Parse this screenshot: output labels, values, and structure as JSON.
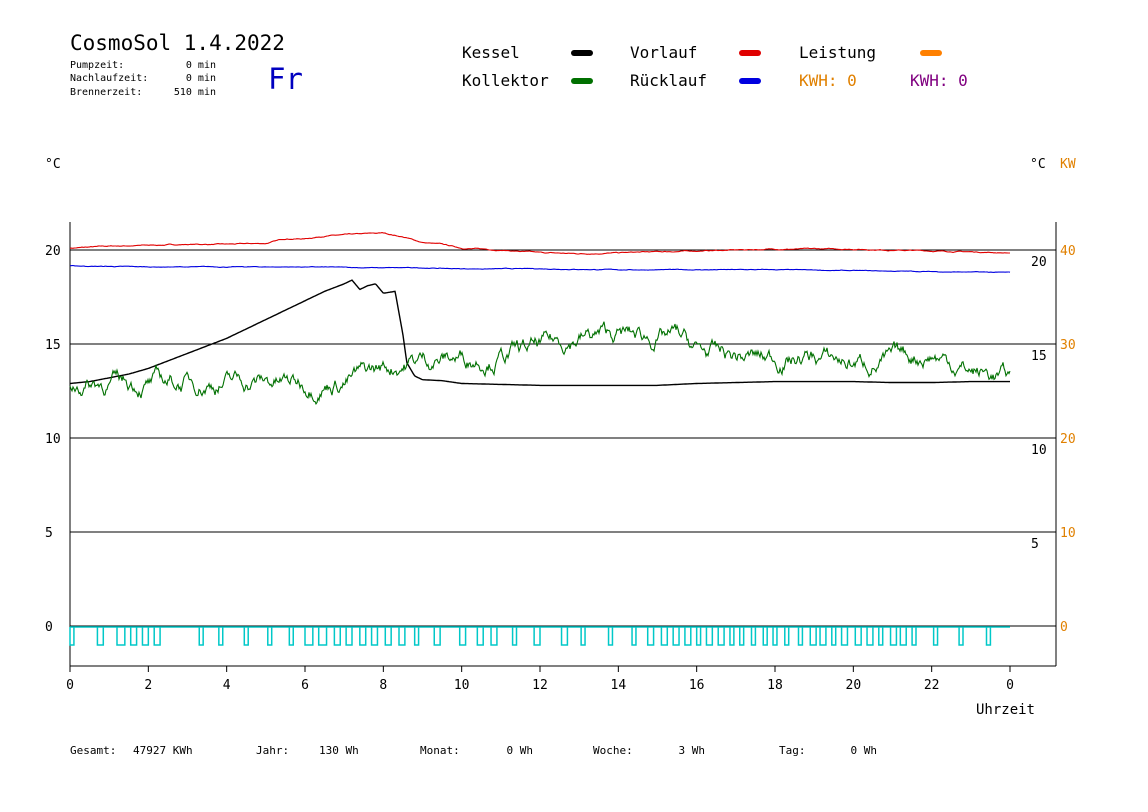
{
  "header": {
    "title": "CosmoSol 1.4.2022",
    "day": "Fr",
    "pumpzeit_label": "Pumpzeit:",
    "pumpzeit_value": "0 min",
    "nachlaufzeit_label": "Nachlaufzeit:",
    "nachlaufzeit_value": "0 min",
    "brennerzeit_label": "Brennerzeit:",
    "brennerzeit_value": "510 min"
  },
  "legend": {
    "kessel": "Kessel",
    "kollektor": "Kollektor",
    "vorlauf": "Vorlauf",
    "ruecklauf": "Rücklauf",
    "leistung": "Leistung",
    "kwh_orange": "KWH: 0",
    "kwh_purple": "KWH: 0"
  },
  "units": {
    "left": "°C",
    "right_c": "°C",
    "right_kw": "KW"
  },
  "footer": {
    "gesamt_label": "Gesamt:",
    "gesamt_value": "47927 KWh",
    "jahr_label": "Jahr:",
    "jahr_value": "130 Wh",
    "monat_label": "Monat:",
    "monat_value": "0 Wh",
    "woche_label": "Woche:",
    "woche_value": "3 Wh",
    "tag_label": "Tag:",
    "tag_value": "0 Wh"
  },
  "colors": {
    "kessel": "#000000",
    "kollektor": "#007000",
    "vorlauf": "#e00000",
    "ruecklauf": "#0000e0",
    "leistung": "#ff8000",
    "kwh_orange": "#e08000",
    "kwh_purple": "#800080",
    "pump": "#00c8c8",
    "day": "#0000c0",
    "kw_axis": "#e08000"
  },
  "chart_data": {
    "type": "line",
    "xlabel": "Uhrzeit",
    "x_ticks": [
      "0",
      "2",
      "4",
      "6",
      "8",
      "10",
      "12",
      "14",
      "16",
      "18",
      "20",
      "22",
      "0"
    ],
    "xlim": [
      0,
      24
    ],
    "ylim_left": [
      -1.5,
      22
    ],
    "y_ticks_left": [
      "0",
      "5",
      "10",
      "15",
      "20"
    ],
    "y_ticks_right_c": [
      "5",
      "10",
      "15",
      "20"
    ],
    "y_ticks_right_kw": [
      "0",
      "10",
      "20",
      "30",
      "40"
    ],
    "gridlines_c": [
      0,
      5,
      10,
      15,
      20
    ],
    "series": [
      {
        "name": "Vorlauf",
        "color_key": "vorlauf",
        "x": [
          0,
          1,
          2,
          3,
          4,
          5,
          5.5,
          6,
          6.5,
          7,
          8,
          8.5,
          9,
          9.5,
          10,
          11,
          12,
          13,
          14,
          15,
          16,
          17,
          18,
          19,
          20,
          21,
          22,
          23,
          24
        ],
        "y": [
          20.1,
          20.2,
          20.25,
          20.3,
          20.3,
          20.35,
          20.6,
          20.6,
          20.75,
          20.8,
          20.9,
          20.7,
          20.4,
          20.3,
          20.1,
          20.0,
          19.85,
          19.8,
          19.85,
          19.9,
          19.95,
          20.0,
          20.05,
          20.05,
          20.05,
          20.0,
          19.95,
          19.9,
          19.85
        ]
      },
      {
        "name": "Rücklauf",
        "color_key": "ruecklauf",
        "x": [
          0,
          2,
          4,
          6,
          8,
          9,
          10,
          12,
          14,
          16,
          18,
          20,
          22,
          24
        ],
        "y": [
          19.15,
          19.1,
          19.1,
          19.1,
          19.05,
          19.05,
          19.0,
          19.0,
          18.95,
          18.95,
          18.95,
          18.9,
          18.85,
          18.8
        ]
      },
      {
        "name": "Kessel",
        "color_key": "kessel",
        "x": [
          0,
          0.5,
          1,
          1.5,
          2,
          2.5,
          3,
          3.5,
          4,
          4.5,
          5,
          5.5,
          6,
          6.5,
          7,
          7.2,
          7.4,
          7.6,
          7.8,
          8.0,
          8.3,
          8.5,
          8.6,
          8.8,
          9.0,
          9.5,
          10,
          11,
          12,
          13,
          14,
          15,
          16,
          17,
          18,
          19,
          20,
          21,
          22,
          23,
          24
        ],
        "y": [
          12.9,
          13.0,
          13.2,
          13.4,
          13.7,
          14.1,
          14.5,
          14.9,
          15.3,
          15.8,
          16.3,
          16.8,
          17.3,
          17.8,
          18.2,
          18.4,
          17.9,
          18.1,
          18.2,
          17.7,
          17.8,
          15.5,
          14.0,
          13.3,
          13.1,
          13.05,
          12.9,
          12.85,
          12.8,
          12.8,
          12.8,
          12.8,
          12.9,
          12.95,
          13.0,
          13.0,
          13.0,
          12.95,
          12.95,
          13.0,
          13.0
        ]
      },
      {
        "name": "Kollektor",
        "color_key": "kollektor",
        "x": [
          0,
          1,
          2,
          3,
          4,
          5,
          6,
          7,
          8,
          8.5,
          9,
          10,
          11,
          12,
          13,
          14,
          15,
          15.5,
          16,
          17,
          18,
          19,
          20,
          21,
          22,
          23,
          24
        ],
        "y": [
          12.9,
          13.0,
          12.9,
          12.95,
          13.0,
          13.0,
          12.9,
          13.1,
          13.7,
          14.0,
          14.2,
          14.3,
          14.4,
          14.8,
          15.4,
          15.5,
          15.3,
          15.4,
          14.6,
          14.3,
          14.2,
          14.3,
          14.0,
          14.1,
          14.5,
          13.6,
          13.2
        ]
      }
    ],
    "pump_on_intervals": [
      [
        0,
        0.1
      ],
      [
        0.7,
        0.85
      ],
      [
        1.2,
        1.4
      ],
      [
        1.55,
        1.7
      ],
      [
        1.85,
        2.0
      ],
      [
        2.15,
        2.3
      ],
      [
        3.3,
        3.4
      ],
      [
        3.8,
        3.9
      ],
      [
        4.45,
        4.55
      ],
      [
        5.05,
        5.15
      ],
      [
        5.6,
        5.7
      ],
      [
        6.0,
        6.2
      ],
      [
        6.35,
        6.55
      ],
      [
        6.75,
        6.9
      ],
      [
        7.05,
        7.2
      ],
      [
        7.4,
        7.55
      ],
      [
        7.7,
        7.85
      ],
      [
        8.05,
        8.2
      ],
      [
        8.4,
        8.55
      ],
      [
        8.8,
        8.9
      ],
      [
        9.3,
        9.45
      ],
      [
        9.95,
        10.1
      ],
      [
        10.4,
        10.55
      ],
      [
        10.75,
        10.9
      ],
      [
        11.3,
        11.4
      ],
      [
        11.85,
        12.0
      ],
      [
        12.55,
        12.7
      ],
      [
        13.05,
        13.15
      ],
      [
        13.75,
        13.85
      ],
      [
        14.35,
        14.45
      ],
      [
        14.75,
        14.9
      ],
      [
        15.1,
        15.25
      ],
      [
        15.4,
        15.55
      ],
      [
        15.7,
        15.85
      ],
      [
        16.0,
        16.1
      ],
      [
        16.25,
        16.4
      ],
      [
        16.55,
        16.7
      ],
      [
        16.85,
        16.95
      ],
      [
        17.1,
        17.2
      ],
      [
        17.4,
        17.5
      ],
      [
        17.7,
        17.8
      ],
      [
        17.95,
        18.05
      ],
      [
        18.25,
        18.35
      ],
      [
        18.6,
        18.7
      ],
      [
        18.9,
        19.05
      ],
      [
        19.15,
        19.3
      ],
      [
        19.45,
        19.55
      ],
      [
        19.7,
        19.85
      ],
      [
        20.05,
        20.2
      ],
      [
        20.35,
        20.5
      ],
      [
        20.65,
        20.75
      ],
      [
        20.95,
        21.1
      ],
      [
        21.2,
        21.35
      ],
      [
        21.5,
        21.6
      ],
      [
        22.05,
        22.15
      ],
      [
        22.7,
        22.8
      ],
      [
        23.4,
        23.5
      ]
    ]
  }
}
